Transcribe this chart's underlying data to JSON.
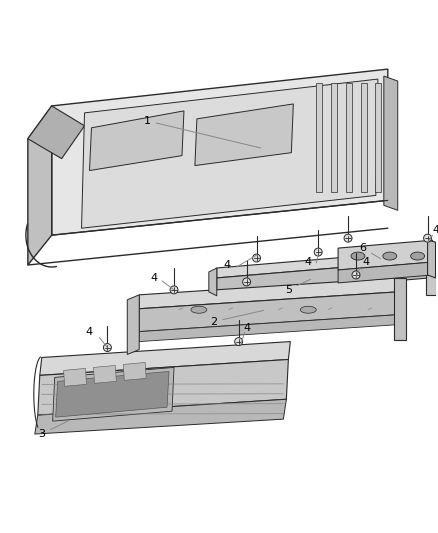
{
  "background_color": "#ffffff",
  "line_color": "#2a2a2a",
  "line_color_med": "#555555",
  "line_color_light": "#888888",
  "fill_roof_top": "#e8e8e8",
  "fill_roof_side": "#c8c8c8",
  "fill_roof_front": "#b8b8b8",
  "fill_rail": "#d4d4d4",
  "fill_rail_dark": "#b0b0b0",
  "fill_console": "#cccccc",
  "fill_console_dark": "#aaaaaa",
  "fill_screw": "#d8d8d8",
  "label_fs": 8,
  "figure_width": 4.38,
  "figure_height": 5.33,
  "dpi": 100
}
